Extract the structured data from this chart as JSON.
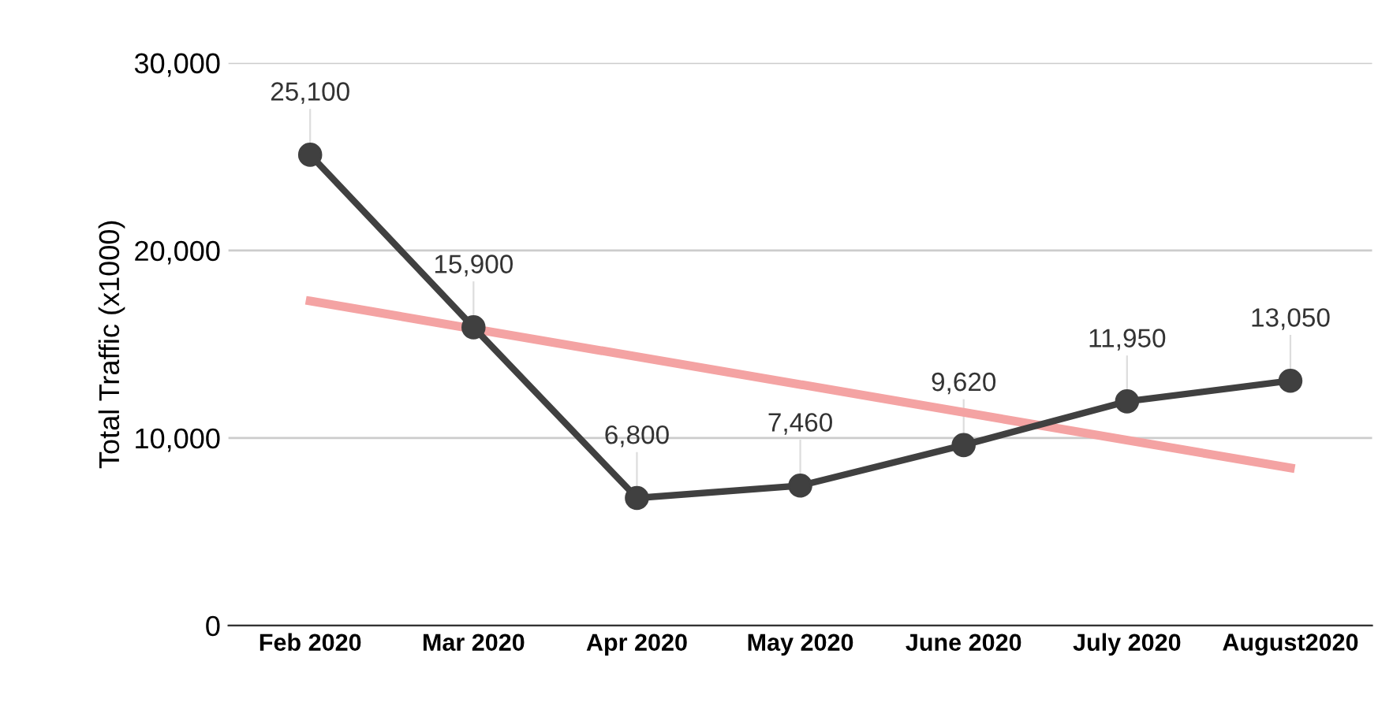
{
  "chart_data": {
    "type": "line",
    "ylabel": "Total Traffic (x1000)",
    "categories": [
      "Feb 2020",
      "Mar 2020",
      "Apr 2020",
      "May 2020",
      "June 2020",
      "July 2020",
      "August2020"
    ],
    "series": [
      {
        "color": "#404040",
        "values": [
          25100,
          15900,
          6800,
          7460,
          9620,
          11950,
          13050
        ],
        "value_labels": [
          "25,100",
          "15,900",
          "6,800",
          "7,460",
          "9,620",
          "11,950",
          "13,050"
        ],
        "marker": "circle"
      },
      {
        "type": "line",
        "color": "#f4a3a3",
        "x": [
          "Feb 2020",
          "August2020"
        ],
        "values": [
          17300,
          8400
        ],
        "marker": "none"
      }
    ],
    "ylim": [
      0,
      30000
    ],
    "yticks": [
      0,
      {
        "value": 10000,
        "label": "10,000"
      },
      {
        "value": 20000,
        "label": "20,000"
      },
      {
        "value": 30000,
        "label": "30,000"
      }
    ],
    "grid": "y",
    "legend": false,
    "line_style": "solid"
  }
}
